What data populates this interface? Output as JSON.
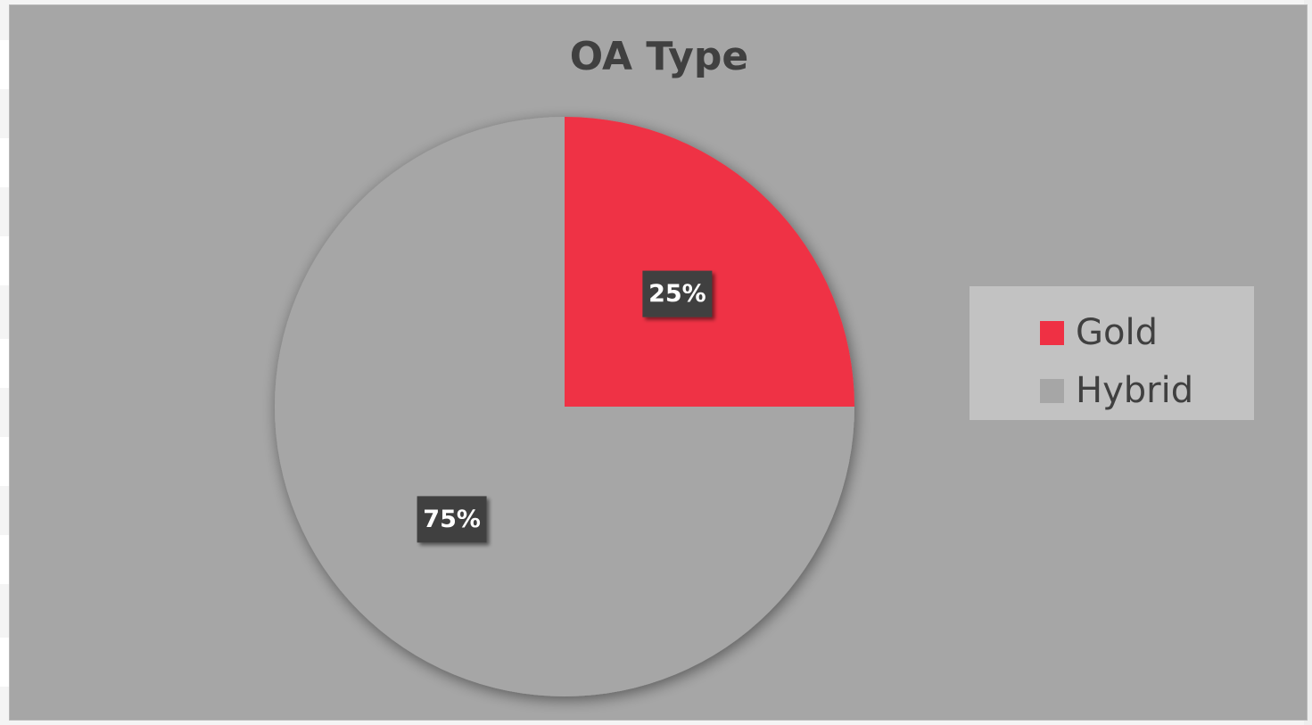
{
  "chart_data": {
    "type": "pie",
    "title": "OA Type",
    "categories": [
      "Gold",
      "Hybrid"
    ],
    "values": [
      25,
      75
    ],
    "data_labels": [
      "25%",
      "75%"
    ],
    "colors": [
      "#ef3044",
      "#a6a6a6"
    ],
    "start_angle_deg": 0,
    "legend_position": "right"
  }
}
